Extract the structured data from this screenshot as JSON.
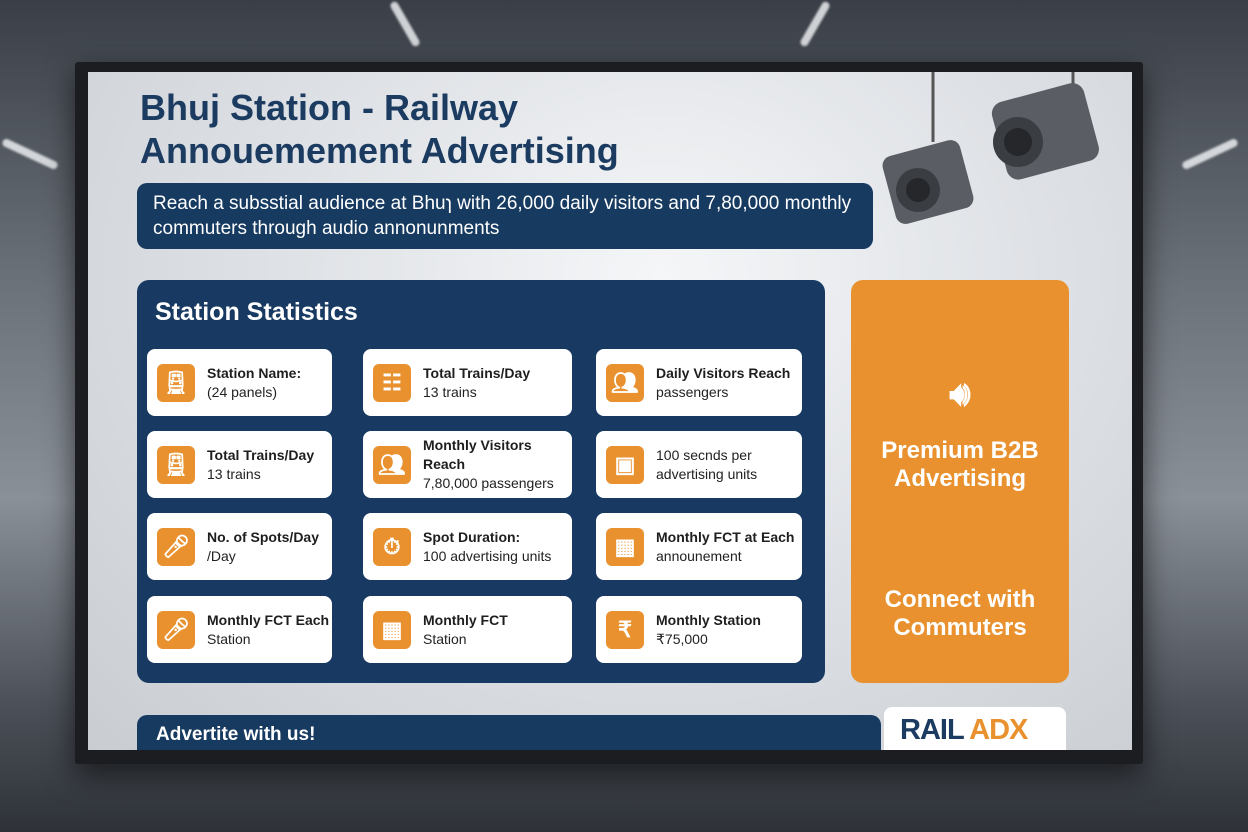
{
  "title": [
    "Bhuj Station - Railway",
    "Annouemement Advertising"
  ],
  "subtitle": "Reach a subsstial audience at Bhuɿ with 26,000 daily visitors and 7,80,000 monthly commuters through audio annonunments",
  "stats": {
    "heading": "Station Statistics",
    "cards": [
      {
        "icon": "train-icon",
        "label": "Station Name:",
        "value": "(24 panels)"
      },
      {
        "icon": "track-icon",
        "label": "Total Trains/Day",
        "value": "13 trains"
      },
      {
        "icon": "people-icon",
        "label": "Daily Visitors Reach",
        "value": "passengers"
      },
      {
        "icon": "train-icon",
        "label": "Total Trains/Day",
        "value": "13 trains"
      },
      {
        "icon": "people-icon",
        "label": "Monthly Visitors Reach",
        "value": "7,80,000 passengers"
      },
      {
        "icon": "box-icon",
        "label": "",
        "value": "100 secnds per advertising units"
      },
      {
        "icon": "microphone-icon",
        "label": "No. of Spots/Day",
        "value": "/Day"
      },
      {
        "icon": "stopwatch-icon",
        "label": "Spot Duration:",
        "value": "100 advertising units"
      },
      {
        "icon": "calendar-icon",
        "label": "Monthly FCT at Each",
        "value": "announement"
      },
      {
        "icon": "microphone-icon",
        "label": "Monthly FCT Each",
        "value": "Station"
      },
      {
        "icon": "calendar-icon",
        "label": "Monthly FCT",
        "value": "Station"
      },
      {
        "icon": "rupee-icon",
        "label": "Monthly Station",
        "value": "₹75,000"
      }
    ]
  },
  "promo": {
    "line1": "Premium B2B Advertising",
    "line2": "Connect with Commuters"
  },
  "footer": {
    "cta": "Advertite with us!",
    "logo": "RAIL ADX"
  },
  "colors": {
    "navy": "#173a60",
    "orange": "#e8912e"
  }
}
